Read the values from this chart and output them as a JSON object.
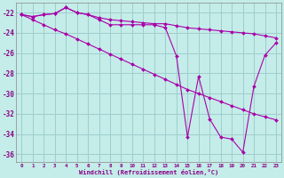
{
  "xlabel": "Windchill (Refroidissement éolien,°C)",
  "bg_color": "#c4ece8",
  "grid_color": "#9ecece",
  "line_color": "#aa00aa",
  "xlim": [
    -0.5,
    23.5
  ],
  "ylim": [
    -36.8,
    -21.0
  ],
  "yticks": [
    -22,
    -24,
    -26,
    -28,
    -30,
    -32,
    -34,
    -36
  ],
  "xticks": [
    0,
    1,
    2,
    3,
    4,
    5,
    6,
    7,
    8,
    9,
    10,
    11,
    12,
    13,
    14,
    15,
    16,
    17,
    18,
    19,
    20,
    21,
    22,
    23
  ],
  "line1_x": [
    0,
    1,
    2,
    3,
    4,
    5,
    6,
    7,
    8,
    9,
    10,
    11,
    12,
    13,
    14,
    15,
    16,
    17,
    18,
    19,
    20,
    21,
    22,
    23
  ],
  "line1_y": [
    -22.2,
    -22.4,
    -22.2,
    -22.1,
    -21.5,
    -22.0,
    -22.2,
    -22.5,
    -22.7,
    -22.8,
    -22.9,
    -23.0,
    -23.1,
    -23.1,
    -23.3,
    -23.5,
    -23.6,
    -23.7,
    -23.8,
    -23.9,
    -24.0,
    -24.1,
    -24.3,
    -24.5
  ],
  "line2_x": [
    0,
    1,
    2,
    3,
    4,
    5,
    6,
    7,
    8,
    9,
    10,
    11,
    12,
    13,
    14,
    15,
    16,
    17,
    18,
    19,
    20,
    21,
    22,
    23
  ],
  "line2_y": [
    -22.2,
    -22.7,
    -23.2,
    -23.7,
    -24.1,
    -24.6,
    -25.1,
    -25.6,
    -26.1,
    -26.6,
    -27.1,
    -27.6,
    -28.1,
    -28.6,
    -29.1,
    -29.6,
    -30.0,
    -30.4,
    -30.8,
    -31.2,
    -31.6,
    -32.0,
    -32.3,
    -32.6
  ],
  "line3_x": [
    0,
    1,
    2,
    3,
    4,
    5,
    6,
    7,
    8,
    9,
    10,
    11,
    12,
    13,
    14,
    15,
    16,
    17,
    18,
    19,
    20,
    21,
    22,
    23
  ],
  "line3_y": [
    -22.2,
    -22.4,
    -22.2,
    -22.1,
    -21.5,
    -22.0,
    -22.2,
    -22.7,
    -23.2,
    -23.2,
    -23.2,
    -23.2,
    -23.2,
    -23.5,
    -26.3,
    -34.3,
    -28.3,
    -32.5,
    -34.3,
    -34.5,
    -35.8,
    -29.3,
    -26.2,
    -25.0
  ]
}
